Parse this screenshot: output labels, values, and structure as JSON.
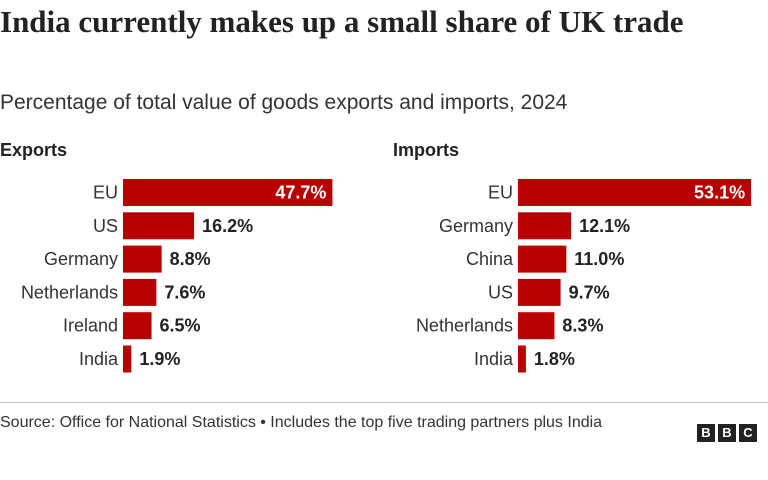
{
  "title": "India currently makes up a small share of UK trade",
  "subtitle": "Percentage of total value of goods exports and imports, 2024",
  "source": "Source: Office for National Statistics • Includes the top five trading partners plus India",
  "logo": [
    "B",
    "B",
    "C"
  ],
  "colors": {
    "bar": "#b80000",
    "text": "#222222",
    "inside_label": "#ffffff"
  },
  "chart_data": [
    {
      "type": "bar",
      "orientation": "horizontal",
      "title": "Exports",
      "categories": [
        "EU",
        "US",
        "Germany",
        "Netherlands",
        "Ireland",
        "India"
      ],
      "values": [
        47.7,
        16.2,
        8.8,
        7.6,
        6.5,
        1.9
      ],
      "value_labels": [
        "47.7%",
        "16.2%",
        "8.8%",
        "7.6%",
        "6.5%",
        "1.9%"
      ],
      "unit": "%",
      "grid": false
    },
    {
      "type": "bar",
      "orientation": "horizontal",
      "title": "Imports",
      "categories": [
        "EU",
        "Germany",
        "China",
        "US",
        "Netherlands",
        "India"
      ],
      "values": [
        53.1,
        12.1,
        11.0,
        9.7,
        8.3,
        1.8
      ],
      "value_labels": [
        "53.1%",
        "12.1%",
        "11.0%",
        "9.7%",
        "8.3%",
        "1.8%"
      ],
      "unit": "%",
      "grid": false
    }
  ]
}
